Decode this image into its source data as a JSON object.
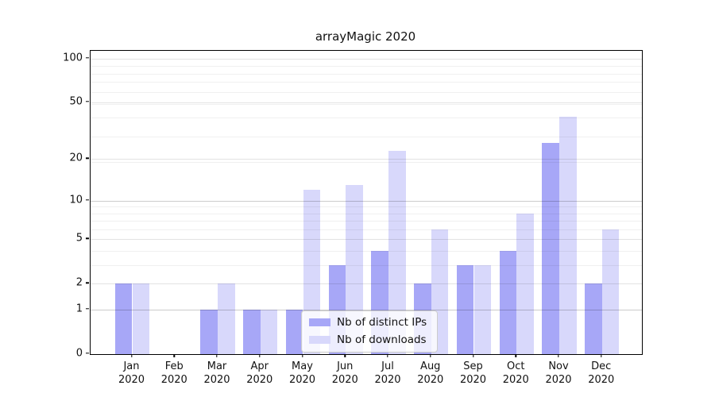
{
  "title": "arrayMagic 2020",
  "chart_data": {
    "type": "bar",
    "title": "arrayMagic 2020",
    "categories": [
      "Jan 2020",
      "Feb 2020",
      "Mar 2020",
      "Apr 2020",
      "May 2020",
      "Jun 2020",
      "Jul 2020",
      "Aug 2020",
      "Sep 2020",
      "Oct 2020",
      "Nov 2020",
      "Dec 2020"
    ],
    "series": [
      {
        "name": "Nb of distinct IPs",
        "color": "#a7a7f7",
        "values": [
          2,
          0,
          1,
          1,
          1,
          3,
          4,
          2,
          3,
          4,
          26,
          2
        ]
      },
      {
        "name": "Nb of downloads",
        "color": "#d8d8fb",
        "values": [
          2,
          0,
          2,
          1,
          12,
          13,
          23,
          6,
          3,
          8,
          40,
          6
        ]
      }
    ],
    "yscale": "log(1+y)",
    "yticks": [
      0,
      1,
      2,
      5,
      10,
      20,
      50,
      100
    ],
    "ylim": [
      0,
      112
    ],
    "grid": "horizontal",
    "gridline_values": {
      "major": [
        1,
        10
      ],
      "mid": [
        2,
        5,
        20,
        50,
        100
      ],
      "minor": [
        3,
        4,
        6,
        7,
        8,
        9,
        19,
        29,
        39,
        49,
        59,
        69,
        79,
        89
      ]
    },
    "legend_position": "inside-bottom-center"
  },
  "legend": {
    "items": [
      {
        "label": "Nb of distinct IPs"
      },
      {
        "label": "Nb of downloads"
      }
    ]
  }
}
